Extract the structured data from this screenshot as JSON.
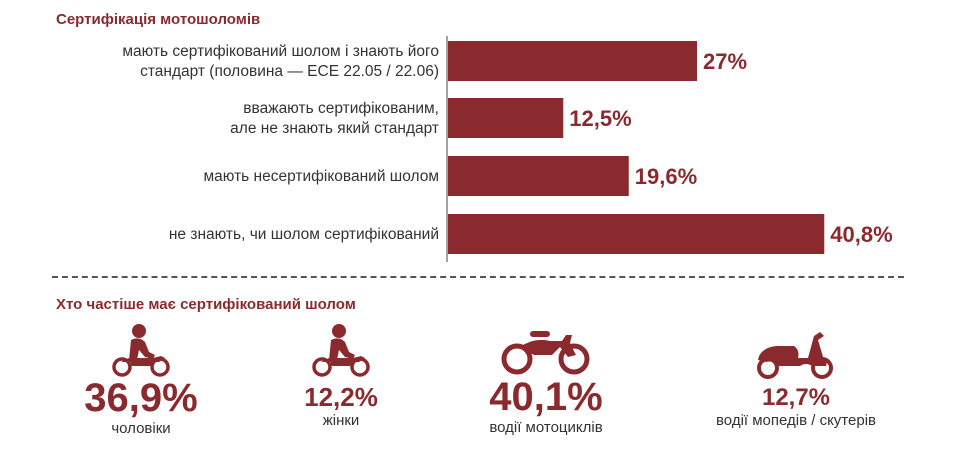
{
  "colors": {
    "accent": "#8b2a2e"
  },
  "section1": {
    "title": "Сертифікація мотошоломів"
  },
  "section2": {
    "title": "Хто частіше має сертифікований шолом"
  },
  "chart_data": {
    "type": "bar",
    "orientation": "horizontal",
    "title": "Сертифікація мотошоломів",
    "categories": [
      [
        "мають сертифікований шолом і знають його",
        "стандарт (половина — ECE 22.05 / 22.06)"
      ],
      [
        "вважають сертифікованим,",
        "але не знають який стандарт"
      ],
      [
        "мають несертифікований шолом"
      ],
      [
        "не знають, чи шолом сертифікований"
      ]
    ],
    "values": [
      27,
      12.5,
      19.6,
      40.8
    ],
    "value_labels": [
      "27%",
      "12,5%",
      "19,6%",
      "40,8%"
    ],
    "unit": "%",
    "xlim": [
      0,
      45
    ]
  },
  "stats": [
    {
      "value": "36,9%",
      "caption": "чоловіки",
      "icon": "motorcycle-rider-icon"
    },
    {
      "value": "12,2%",
      "caption": "жінки",
      "icon": "motorcycle-rider-icon"
    },
    {
      "value": "40,1%",
      "caption": "водії мотоциклів",
      "icon": "motorcycle-icon"
    },
    {
      "value": "12,7%",
      "caption": "водії мопедів / скутерів",
      "icon": "scooter-icon"
    }
  ]
}
